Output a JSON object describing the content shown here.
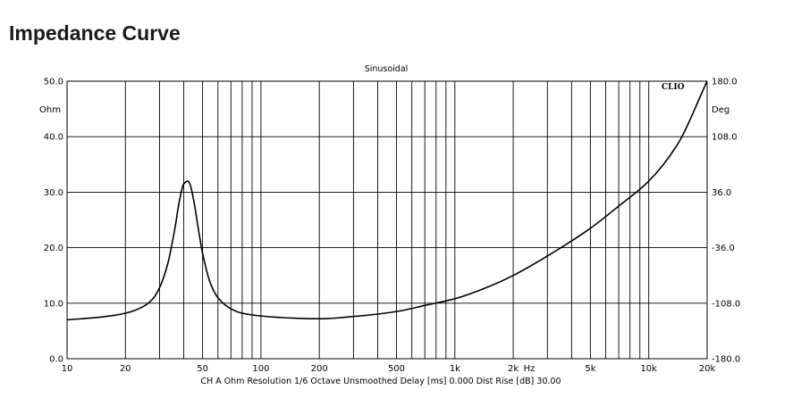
{
  "page_title": "Impedance Curve",
  "chart_data": {
    "type": "line",
    "title": "Sinusoidal",
    "brand": "CLIO",
    "x_scale": "log",
    "xlim": [
      10,
      20000
    ],
    "x_unit": "Hz",
    "x_ticks": [
      {
        "value": 10,
        "label": "10"
      },
      {
        "value": 20,
        "label": "20"
      },
      {
        "value": 50,
        "label": "50"
      },
      {
        "value": 100,
        "label": "100"
      },
      {
        "value": 200,
        "label": "200"
      },
      {
        "value": 500,
        "label": "500"
      },
      {
        "value": 1000,
        "label": "1k"
      },
      {
        "value": 2000,
        "label": "2k"
      },
      {
        "value": 5000,
        "label": "5k"
      },
      {
        "value": 10000,
        "label": "10k"
      },
      {
        "value": 20000,
        "label": "20k"
      }
    ],
    "y_left": {
      "unit": "Ohm",
      "ylim": [
        0,
        50
      ],
      "ticks": [
        "0.0",
        "10.0",
        "20.0",
        "30.0",
        "40.0",
        "50.0"
      ]
    },
    "y_right": {
      "unit": "Deg",
      "ylim": [
        -180,
        180
      ],
      "ticks": [
        "-180.0",
        "-108.0",
        "-36.0",
        "36.0",
        "108.0",
        "180.0"
      ]
    },
    "grid": true,
    "footer": "CH A   Ohm   Resolution 1/6 Octave   Unsmoothed   Delay [ms] 0.000   Dist Rise [dB] 30.00",
    "series": [
      {
        "unit": "Ohm",
        "color": "#000000",
        "x": [
          10,
          15,
          20,
          25,
          28,
          30,
          33,
          36,
          38,
          40,
          42,
          43,
          45,
          48,
          50,
          55,
          60,
          70,
          80,
          100,
          150,
          200,
          300,
          500,
          700,
          1000,
          1500,
          2000,
          3000,
          5000,
          7000,
          10000,
          14000,
          20000
        ],
        "values": [
          7.0,
          7.5,
          8.2,
          9.5,
          11.0,
          12.8,
          17.0,
          23.5,
          28.5,
          31.5,
          32.0,
          31.5,
          28.5,
          22.5,
          19.0,
          13.5,
          11.0,
          9.0,
          8.2,
          7.7,
          7.3,
          7.2,
          7.6,
          8.5,
          9.6,
          10.8,
          13.0,
          15.0,
          18.5,
          23.5,
          27.5,
          32.0,
          38.5,
          50.0
        ]
      }
    ]
  }
}
